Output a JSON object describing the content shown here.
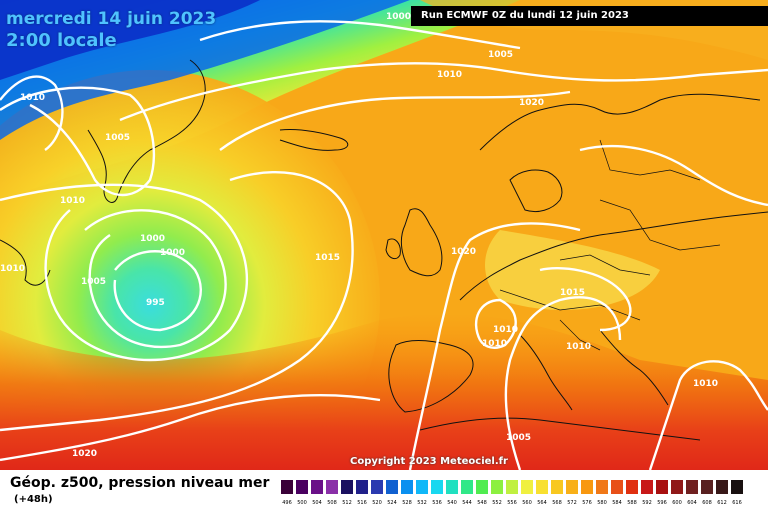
{
  "map": {
    "date_line": "mercredi 14 juin 2023",
    "time_line": "2:00 locale",
    "run_info": "Run ECMWF 0Z du lundi 12 juin 2023",
    "copyright": "Copyright 2023 Meteociel.fr",
    "isobar_labels": [
      "1000",
      "1005",
      "1010",
      "1020",
      "1010",
      "1005",
      "1010",
      "1000",
      "1000",
      "1010",
      "1005",
      "995",
      "1015",
      "1020",
      "1015",
      "1010",
      "1010",
      "1010",
      "1010",
      "1005",
      "1020"
    ]
  },
  "footer": {
    "title": "Géop. z500, pression niveau mer",
    "subtitle": "(+48h)"
  },
  "scale": {
    "labels": [
      "496",
      "500",
      "504",
      "508",
      "512",
      "516",
      "520",
      "524",
      "528",
      "532",
      "536",
      "540",
      "544",
      "548",
      "552",
      "556",
      "560",
      "564",
      "568",
      "572",
      "576",
      "580",
      "584",
      "588",
      "592",
      "596",
      "600",
      "604",
      "608",
      "612",
      "616"
    ],
    "colors": [
      "#3a0038",
      "#4a0060",
      "#6a1088",
      "#8a30a8",
      "#1a1060",
      "#20208a",
      "#2a3ab0",
      "#1060d0",
      "#0a90f0",
      "#10b8f8",
      "#18d8f0",
      "#20e0c0",
      "#30e888",
      "#50ec50",
      "#8cf040",
      "#c0f040",
      "#f0f040",
      "#f8e030",
      "#f8c820",
      "#f8b018",
      "#f89810",
      "#f07818",
      "#e85018",
      "#e03010",
      "#c81818",
      "#a81010",
      "#901818",
      "#702020",
      "#582020",
      "#381818",
      "#181010"
    ]
  }
}
